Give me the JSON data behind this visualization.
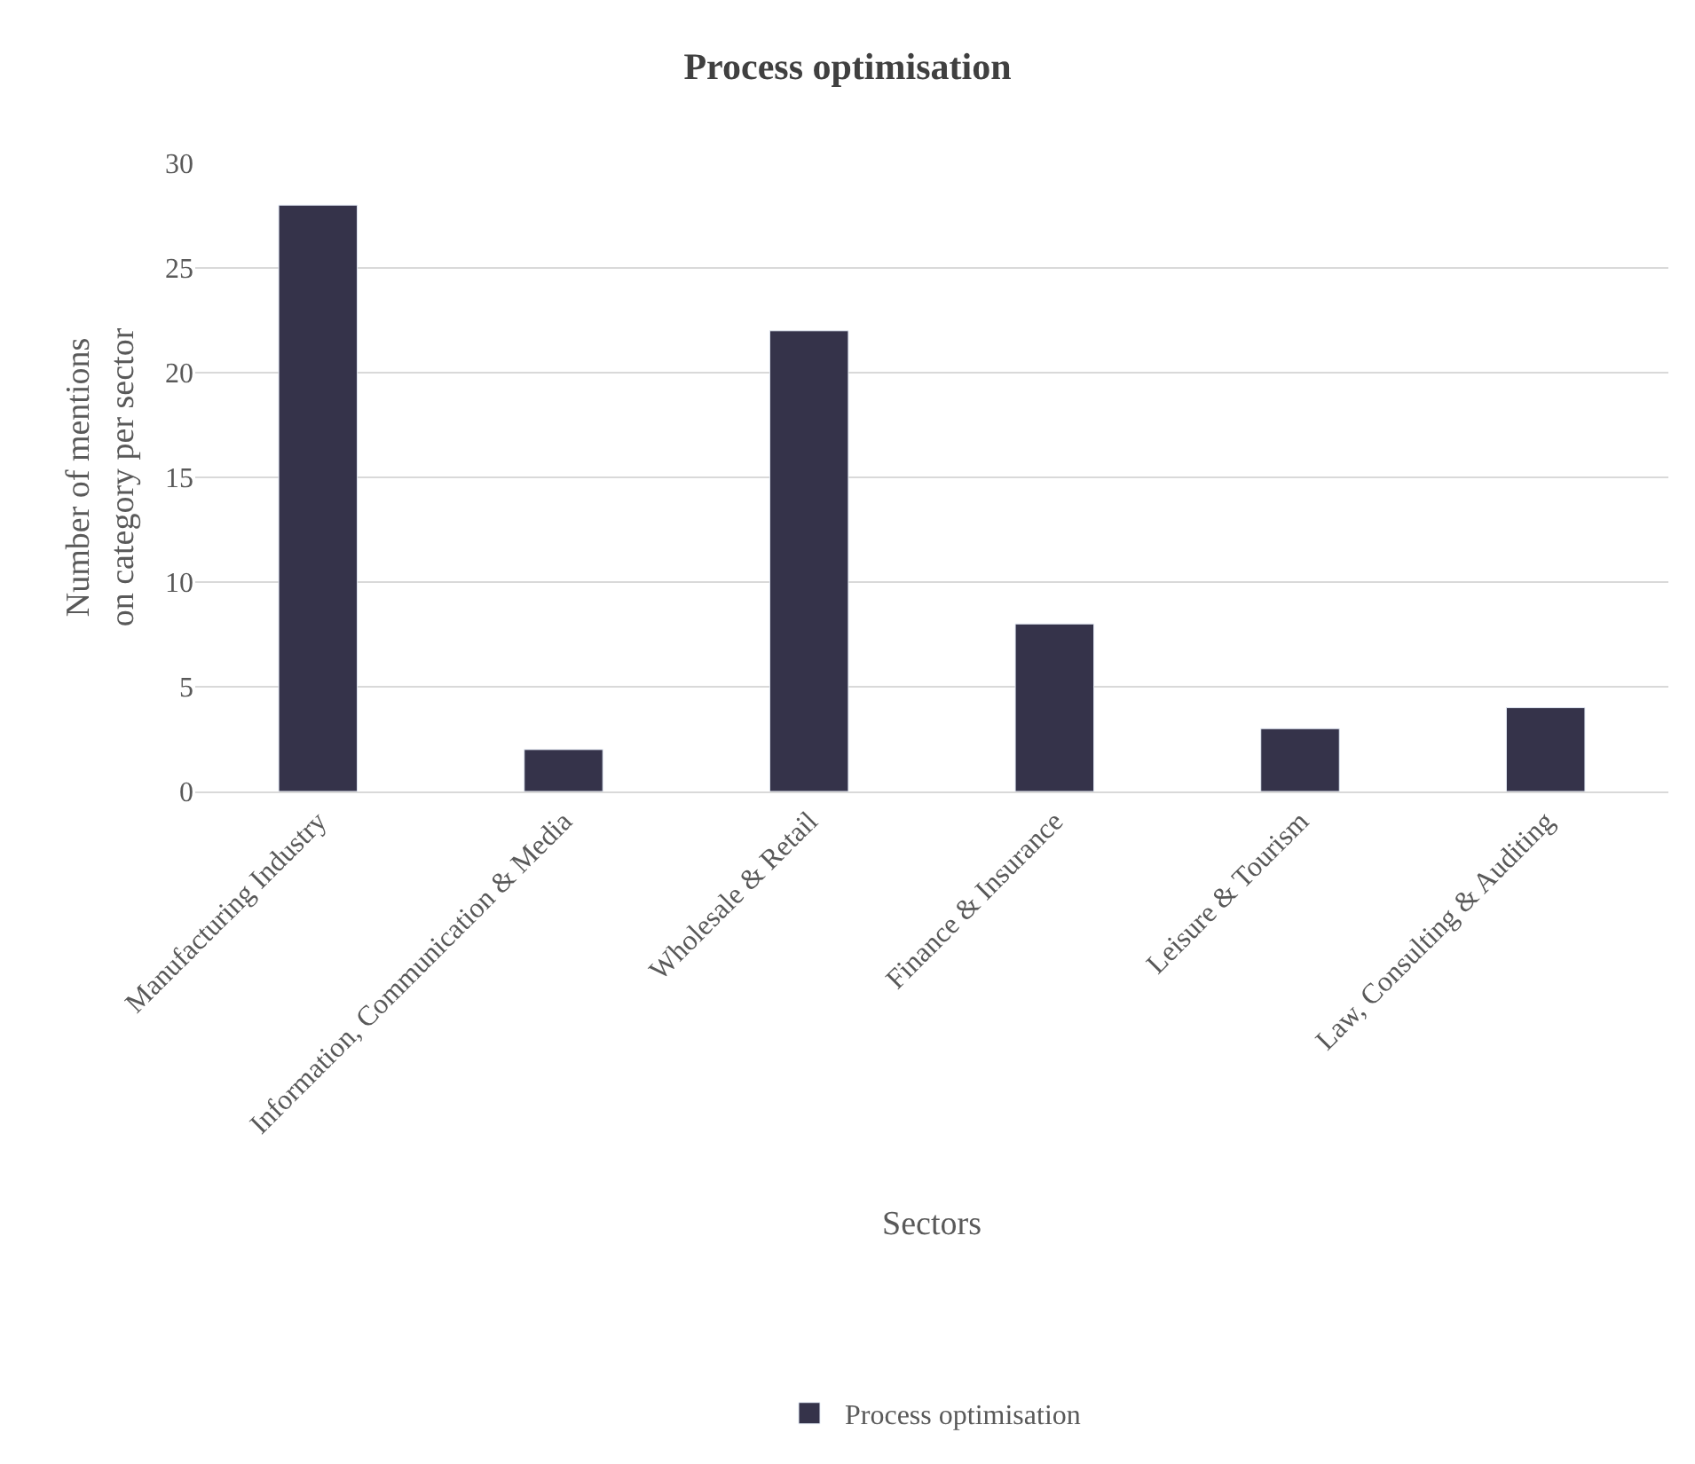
{
  "chart_data": {
    "type": "bar",
    "title": "Process optimisation",
    "xlabel": "Sectors",
    "ylabel": "Number of mentions\non category per sector",
    "categories": [
      "Manufacturing Industry",
      "Information, Communication & Media",
      "Wholesale & Retail",
      "Finance & Insurance",
      "Leisure & Tourism",
      "Law, Consulting & Auditing"
    ],
    "series": [
      {
        "name": "Process optimisation",
        "color": "#35334a",
        "values": [
          28,
          2,
          22,
          8,
          3,
          4
        ]
      }
    ],
    "ylim": [
      0,
      30
    ],
    "yticks": [
      0,
      5,
      10,
      15,
      20,
      25,
      30
    ],
    "grid": "y",
    "legend": "bottom"
  }
}
